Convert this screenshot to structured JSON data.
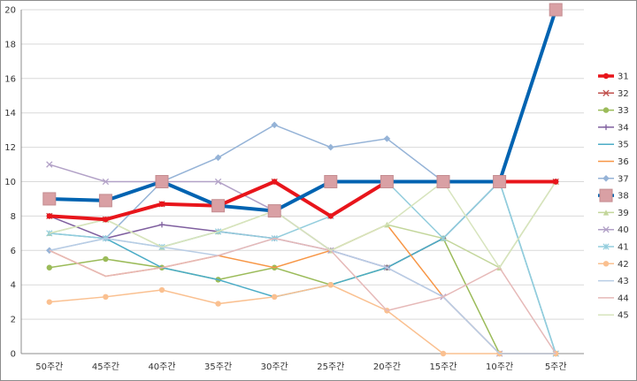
{
  "chart_data": {
    "type": "line",
    "categories": [
      "50주간",
      "45주간",
      "40주간",
      "35주간",
      "30주간",
      "25주간",
      "20주간",
      "15주간",
      "10주간",
      "5주간"
    ],
    "ylim": [
      0,
      20
    ],
    "yticks": [
      0,
      2,
      4,
      6,
      8,
      10,
      12,
      14,
      16,
      18,
      20
    ],
    "grid": true,
    "legend_position": "right",
    "series": [
      {
        "name": "31",
        "color": "#e8151b",
        "width": 4,
        "marker": "circle",
        "values": [
          8,
          7.8,
          8.7,
          8.6,
          10,
          8,
          10,
          10,
          10,
          10
        ]
      },
      {
        "name": "32",
        "color": "#c0504d",
        "width": 1.5,
        "marker": "x",
        "values": [
          8,
          7.8,
          8.7,
          8.6,
          10,
          8,
          10,
          10,
          10,
          10
        ]
      },
      {
        "name": "33",
        "color": "#9bbb59",
        "width": 1.5,
        "marker": "circle",
        "values": [
          5,
          5.5,
          5,
          4.3,
          5,
          4,
          5,
          6.7,
          0,
          0
        ]
      },
      {
        "name": "34",
        "color": "#7f5f9f",
        "width": 1.5,
        "marker": "plus",
        "values": [
          8,
          6.7,
          7.5,
          7.1,
          6.7,
          6,
          5,
          6.7,
          10,
          10
        ]
      },
      {
        "name": "35",
        "color": "#4bacc6",
        "width": 1.5,
        "marker": "none",
        "values": [
          7,
          6.7,
          5,
          4.3,
          3.3,
          4,
          5,
          6.7,
          10,
          0
        ]
      },
      {
        "name": "36",
        "color": "#f79646",
        "width": 1.5,
        "marker": "none",
        "values": [
          6,
          4.5,
          5,
          5.7,
          5,
          6,
          7.5,
          3.3,
          0,
          0
        ]
      },
      {
        "name": "37",
        "color": "#95b3d7",
        "width": 1.5,
        "marker": "diamond",
        "values": [
          6,
          6.7,
          10,
          11.4,
          13.3,
          12,
          12.5,
          10,
          10,
          10
        ]
      },
      {
        "name": "38",
        "color": "#0063b1",
        "width": 4,
        "marker": "square",
        "values": [
          9,
          8.9,
          10,
          8.6,
          8.3,
          10,
          10,
          10,
          10,
          20
        ]
      },
      {
        "name": "39",
        "color": "#c3d69b",
        "width": 1.5,
        "marker": "triangle",
        "values": [
          7,
          7.8,
          6.2,
          7.1,
          8.3,
          6,
          7.5,
          6.7,
          5,
          10
        ]
      },
      {
        "name": "40",
        "color": "#b2a1c7",
        "width": 1.5,
        "marker": "x",
        "values": [
          11,
          10,
          10,
          10,
          8.3,
          6,
          5,
          3.3,
          0,
          0
        ]
      },
      {
        "name": "41",
        "color": "#93cddd",
        "width": 1.5,
        "marker": "star",
        "values": [
          7,
          6.7,
          6.2,
          7.1,
          6.7,
          8,
          10,
          6.7,
          10,
          0
        ]
      },
      {
        "name": "42",
        "color": "#fac090",
        "width": 1.5,
        "marker": "circle",
        "values": [
          3,
          3.3,
          3.7,
          2.9,
          3.3,
          4,
          2.5,
          0,
          0,
          0
        ]
      },
      {
        "name": "43",
        "color": "#b9cde5",
        "width": 1.5,
        "marker": "none",
        "values": [
          6,
          6.7,
          6.2,
          5.7,
          6.7,
          6,
          5,
          3.3,
          0,
          0
        ]
      },
      {
        "name": "44",
        "color": "#e6b9b8",
        "width": 1.5,
        "marker": "none",
        "values": [
          6,
          4.5,
          5,
          5.7,
          6.7,
          6,
          2.5,
          3.3,
          5,
          0
        ]
      },
      {
        "name": "45",
        "color": "#d7e4bd",
        "width": 1.5,
        "marker": "none",
        "values": [
          7,
          7.8,
          6.2,
          7.1,
          8.3,
          6,
          7.5,
          10,
          5,
          10
        ]
      }
    ]
  }
}
